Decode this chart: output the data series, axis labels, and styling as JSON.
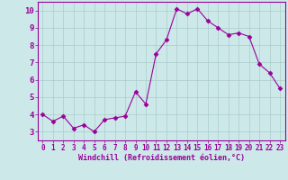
{
  "x": [
    0,
    1,
    2,
    3,
    4,
    5,
    6,
    7,
    8,
    9,
    10,
    11,
    12,
    13,
    14,
    15,
    16,
    17,
    18,
    19,
    20,
    21,
    22,
    23
  ],
  "y": [
    4.0,
    3.6,
    3.9,
    3.2,
    3.4,
    3.0,
    3.7,
    3.8,
    3.9,
    5.3,
    4.6,
    7.5,
    8.3,
    10.1,
    9.8,
    10.1,
    9.4,
    9.0,
    8.6,
    8.7,
    8.5,
    6.9,
    6.4,
    5.5
  ],
  "line_color": "#990099",
  "marker": "D",
  "markersize": 2.5,
  "linewidth": 0.8,
  "background_color": "#cce8e8",
  "grid_color": "#aacccc",
  "xlabel": "Windchill (Refroidissement éolien,°C)",
  "xlabel_color": "#990099",
  "xlim": [
    -0.5,
    23.5
  ],
  "ylim": [
    2.5,
    10.5
  ],
  "yticks": [
    3,
    4,
    5,
    6,
    7,
    8,
    9,
    10
  ],
  "xticks": [
    0,
    1,
    2,
    3,
    4,
    5,
    6,
    7,
    8,
    9,
    10,
    11,
    12,
    13,
    14,
    15,
    16,
    17,
    18,
    19,
    20,
    21,
    22,
    23
  ],
  "tick_color": "#990099",
  "spine_color": "#990099",
  "xlabel_fontsize": 6.0,
  "ytick_fontsize": 6.5,
  "xtick_fontsize": 5.5
}
